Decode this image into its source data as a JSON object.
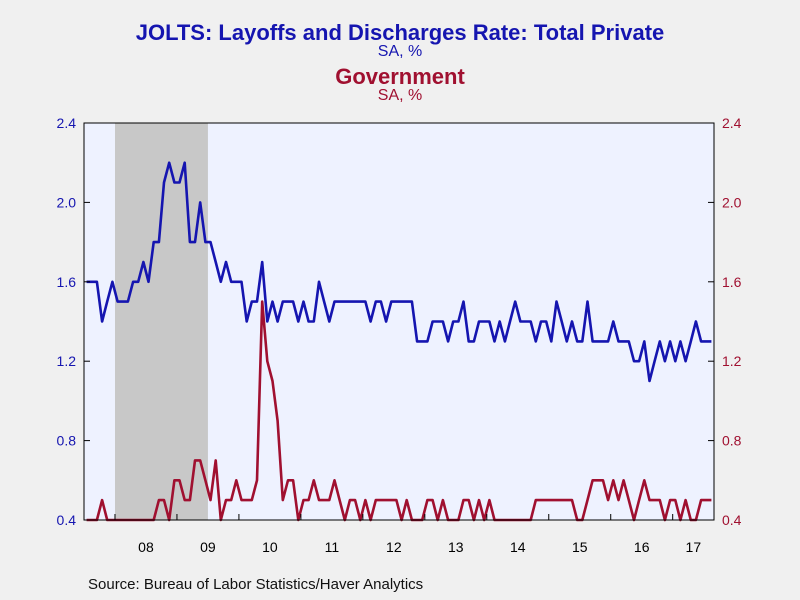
{
  "titles": {
    "left_title": "JOLTS: Layoffs and Discharges Rate: Total Private",
    "left_subtitle": "SA, %",
    "right_title": "Government",
    "right_subtitle": "SA, %"
  },
  "source": "Source:  Bureau of Labor Statistics/Haver Analytics",
  "colors": {
    "private": "#1515b0",
    "government": "#a01030",
    "plot_bg": "#eef2ff",
    "recession": "#c8c8c8"
  },
  "chart_data": {
    "type": "line",
    "x_start": "2007-07",
    "x_end": "2017-08",
    "x_tick_labels": [
      "08",
      "09",
      "10",
      "11",
      "12",
      "13",
      "14",
      "15",
      "16",
      "17"
    ],
    "ylim": [
      0.4,
      2.4
    ],
    "yticks": [
      0.4,
      0.8,
      1.2,
      1.6,
      2.0,
      2.4
    ],
    "y2lim": [
      0.4,
      2.4
    ],
    "y2ticks": [
      0.4,
      0.8,
      1.2,
      1.6,
      2.0,
      2.4
    ],
    "recession": {
      "start": "2008-01",
      "end": "2009-06"
    },
    "grid": false,
    "series": [
      {
        "name": "JOLTS: Layoffs and Discharges Rate: Total Private",
        "axis": "left",
        "values": [
          1.6,
          1.6,
          1.6,
          1.4,
          1.5,
          1.6,
          1.5,
          1.5,
          1.5,
          1.6,
          1.6,
          1.7,
          1.6,
          1.8,
          1.8,
          2.1,
          2.2,
          2.1,
          2.1,
          2.2,
          1.8,
          1.8,
          2.0,
          1.8,
          1.8,
          1.7,
          1.6,
          1.7,
          1.6,
          1.6,
          1.6,
          1.4,
          1.5,
          1.5,
          1.7,
          1.4,
          1.5,
          1.4,
          1.5,
          1.5,
          1.5,
          1.4,
          1.5,
          1.4,
          1.4,
          1.6,
          1.5,
          1.4,
          1.5,
          1.5,
          1.5,
          1.5,
          1.5,
          1.5,
          1.5,
          1.4,
          1.5,
          1.5,
          1.4,
          1.5,
          1.5,
          1.5,
          1.5,
          1.5,
          1.3,
          1.3,
          1.3,
          1.4,
          1.4,
          1.4,
          1.3,
          1.4,
          1.4,
          1.5,
          1.3,
          1.3,
          1.4,
          1.4,
          1.4,
          1.3,
          1.4,
          1.3,
          1.4,
          1.5,
          1.4,
          1.4,
          1.4,
          1.3,
          1.4,
          1.4,
          1.3,
          1.5,
          1.4,
          1.3,
          1.4,
          1.3,
          1.3,
          1.5,
          1.3,
          1.3,
          1.3,
          1.3,
          1.4,
          1.3,
          1.3,
          1.3,
          1.2,
          1.2,
          1.3,
          1.1,
          1.2,
          1.3,
          1.2,
          1.3,
          1.2,
          1.3,
          1.2,
          1.3,
          1.4,
          1.3,
          1.3,
          1.3
        ]
      },
      {
        "name": "Government",
        "axis": "right",
        "values": [
          0.4,
          0.4,
          0.4,
          0.5,
          0.4,
          0.4,
          0.4,
          0.4,
          0.4,
          0.4,
          0.4,
          0.4,
          0.4,
          0.4,
          0.5,
          0.5,
          0.4,
          0.6,
          0.6,
          0.5,
          0.5,
          0.7,
          0.7,
          0.6,
          0.5,
          0.7,
          0.4,
          0.5,
          0.5,
          0.6,
          0.5,
          0.5,
          0.5,
          0.6,
          1.5,
          1.2,
          1.1,
          0.9,
          0.5,
          0.6,
          0.6,
          0.4,
          0.5,
          0.5,
          0.6,
          0.5,
          0.5,
          0.5,
          0.6,
          0.5,
          0.4,
          0.5,
          0.5,
          0.4,
          0.5,
          0.4,
          0.5,
          0.5,
          0.5,
          0.5,
          0.5,
          0.4,
          0.5,
          0.4,
          0.4,
          0.4,
          0.5,
          0.5,
          0.4,
          0.5,
          0.4,
          0.4,
          0.4,
          0.5,
          0.5,
          0.4,
          0.5,
          0.4,
          0.5,
          0.4,
          0.4,
          0.4,
          0.4,
          0.4,
          0.4,
          0.4,
          0.4,
          0.5,
          0.5,
          0.5,
          0.5,
          0.5,
          0.5,
          0.5,
          0.5,
          0.4,
          0.4,
          0.5,
          0.6,
          0.6,
          0.6,
          0.5,
          0.6,
          0.5,
          0.6,
          0.5,
          0.4,
          0.5,
          0.6,
          0.5,
          0.5,
          0.5,
          0.4,
          0.5,
          0.5,
          0.4,
          0.5,
          0.4,
          0.4,
          0.5,
          0.5,
          0.5
        ]
      }
    ]
  }
}
